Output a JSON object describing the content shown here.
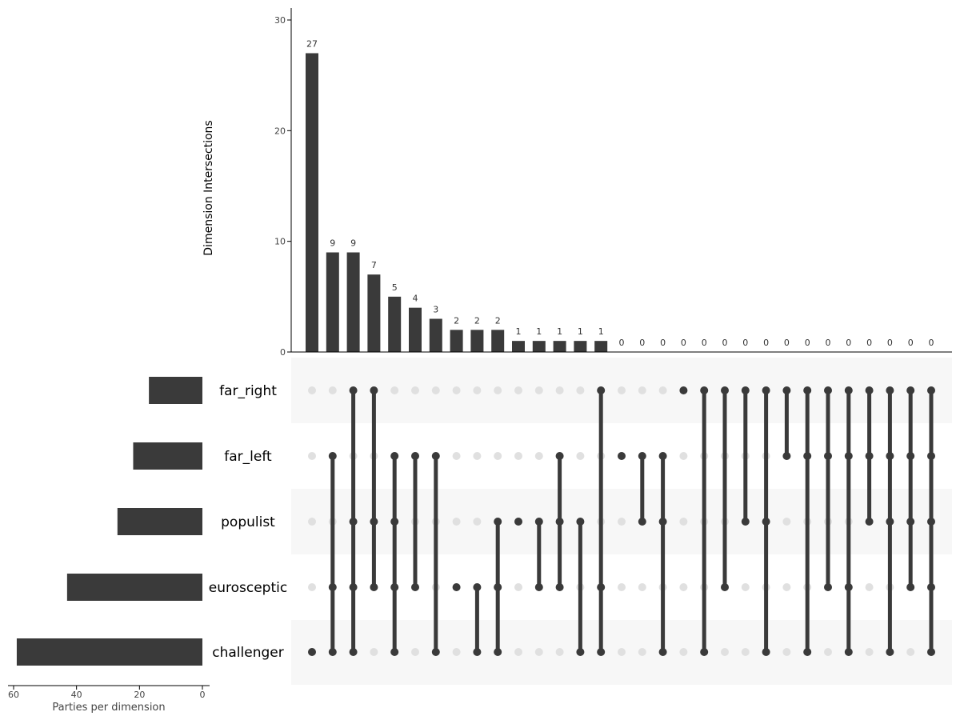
{
  "chart_data": {
    "type": "upset",
    "ylabel": "Dimension Intersections",
    "ylim": [
      0,
      30
    ],
    "yticks": [
      0,
      10,
      20,
      30
    ],
    "sets": [
      "far_right",
      "far_left",
      "populist",
      "eurosceptic",
      "challenger"
    ],
    "set_sizes": [
      17,
      22,
      27,
      43,
      59
    ],
    "set_size_label": "Parties per dimension",
    "set_size_xlim": [
      60,
      0
    ],
    "set_size_ticks": [
      60,
      40,
      20,
      0
    ],
    "intersections": [
      {
        "members": [
          "challenger"
        ],
        "count": 27
      },
      {
        "members": [
          "far_left",
          "eurosceptic",
          "challenger"
        ],
        "count": 9
      },
      {
        "members": [
          "far_right",
          "populist",
          "eurosceptic",
          "challenger"
        ],
        "count": 9
      },
      {
        "members": [
          "far_right",
          "populist",
          "eurosceptic"
        ],
        "count": 7
      },
      {
        "members": [
          "far_left",
          "populist",
          "eurosceptic",
          "challenger"
        ],
        "count": 5
      },
      {
        "members": [
          "far_left",
          "eurosceptic"
        ],
        "count": 4
      },
      {
        "members": [
          "far_left",
          "challenger"
        ],
        "count": 3
      },
      {
        "members": [
          "eurosceptic"
        ],
        "count": 2
      },
      {
        "members": [
          "eurosceptic",
          "challenger"
        ],
        "count": 2
      },
      {
        "members": [
          "populist",
          "eurosceptic",
          "challenger"
        ],
        "count": 2
      },
      {
        "members": [
          "populist"
        ],
        "count": 1
      },
      {
        "members": [
          "populist",
          "eurosceptic"
        ],
        "count": 1
      },
      {
        "members": [
          "far_left",
          "populist",
          "eurosceptic"
        ],
        "count": 1
      },
      {
        "members": [
          "populist",
          "challenger"
        ],
        "count": 1
      },
      {
        "members": [
          "far_right",
          "eurosceptic",
          "challenger"
        ],
        "count": 1
      },
      {
        "members": [
          "far_left"
        ],
        "count": 0
      },
      {
        "members": [
          "far_left",
          "populist"
        ],
        "count": 0
      },
      {
        "members": [
          "far_left",
          "populist",
          "challenger"
        ],
        "count": 0
      },
      {
        "members": [
          "far_right"
        ],
        "count": 0
      },
      {
        "members": [
          "far_right",
          "challenger"
        ],
        "count": 0
      },
      {
        "members": [
          "far_right",
          "eurosceptic"
        ],
        "count": 0
      },
      {
        "members": [
          "far_right",
          "populist"
        ],
        "count": 0
      },
      {
        "members": [
          "far_right",
          "populist",
          "challenger"
        ],
        "count": 0
      },
      {
        "members": [
          "far_right",
          "far_left"
        ],
        "count": 0
      },
      {
        "members": [
          "far_right",
          "far_left",
          "challenger"
        ],
        "count": 0
      },
      {
        "members": [
          "far_right",
          "far_left",
          "eurosceptic"
        ],
        "count": 0
      },
      {
        "members": [
          "far_right",
          "far_left",
          "eurosceptic",
          "challenger"
        ],
        "count": 0
      },
      {
        "members": [
          "far_right",
          "far_left",
          "populist"
        ],
        "count": 0
      },
      {
        "members": [
          "far_right",
          "far_left",
          "populist",
          "challenger"
        ],
        "count": 0
      },
      {
        "members": [
          "far_right",
          "far_left",
          "populist",
          "eurosceptic"
        ],
        "count": 0
      },
      {
        "members": [
          "far_right",
          "far_left",
          "populist",
          "eurosceptic",
          "challenger"
        ],
        "count": 0
      }
    ],
    "colors": {
      "bar": "#3a3a3a",
      "inactive_dot": "#e0e0e0",
      "band": "#f7f7f7"
    }
  }
}
